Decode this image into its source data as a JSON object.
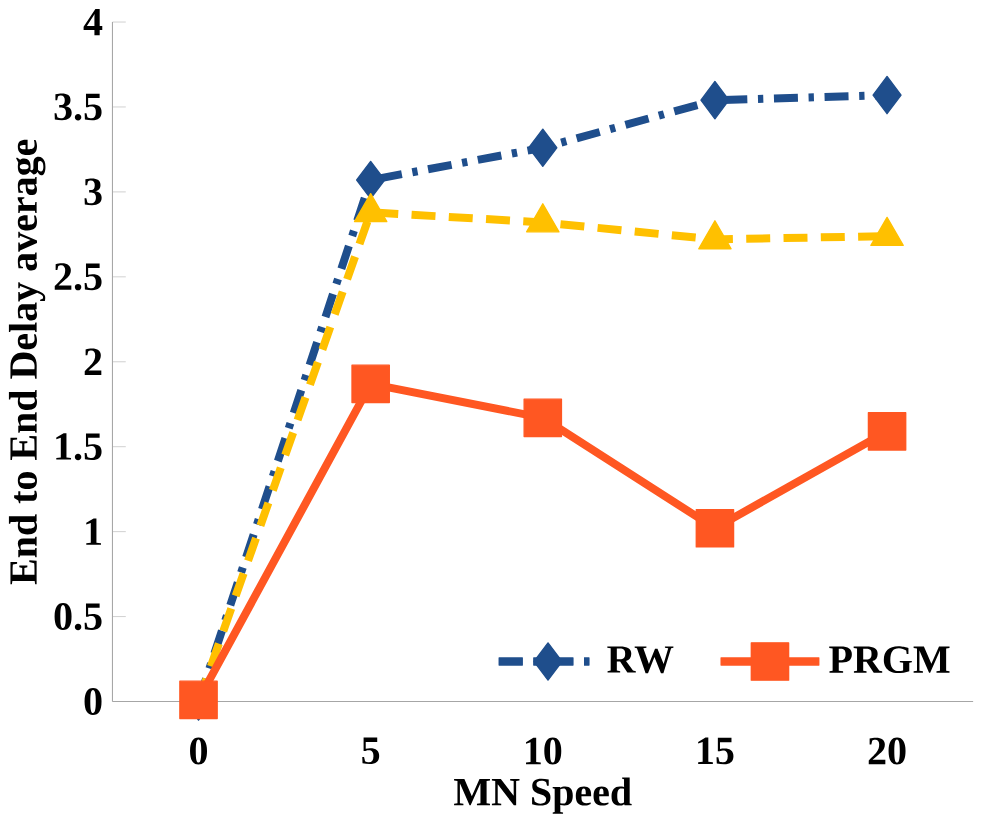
{
  "chart_data": {
    "type": "line",
    "xlabel": "MN Speed",
    "ylabel": "End to End Delay average",
    "categories": [
      "0",
      "5",
      "10",
      "15",
      "20"
    ],
    "ylim": [
      0,
      4
    ],
    "yticks": [
      0,
      0.5,
      1,
      1.5,
      2,
      2.5,
      3,
      3.5,
      4
    ],
    "grid": false,
    "legend": "bottom right",
    "series": [
      {
        "name": "RW",
        "color": "#1f4e8c",
        "marker": "diamond",
        "line_style": "dashdot",
        "values": [
          0,
          3.07,
          3.26,
          3.54,
          3.57
        ]
      },
      {
        "color": "#ffc000",
        "marker": "triangle",
        "line_style": "dashed",
        "values": [
          0,
          2.88,
          2.82,
          2.72,
          2.74
        ]
      },
      {
        "name": "PRGM",
        "color": "#ff5722",
        "marker": "square",
        "line_style": "solid",
        "values": [
          0.01,
          1.87,
          1.67,
          1.02,
          1.59
        ]
      }
    ]
  }
}
